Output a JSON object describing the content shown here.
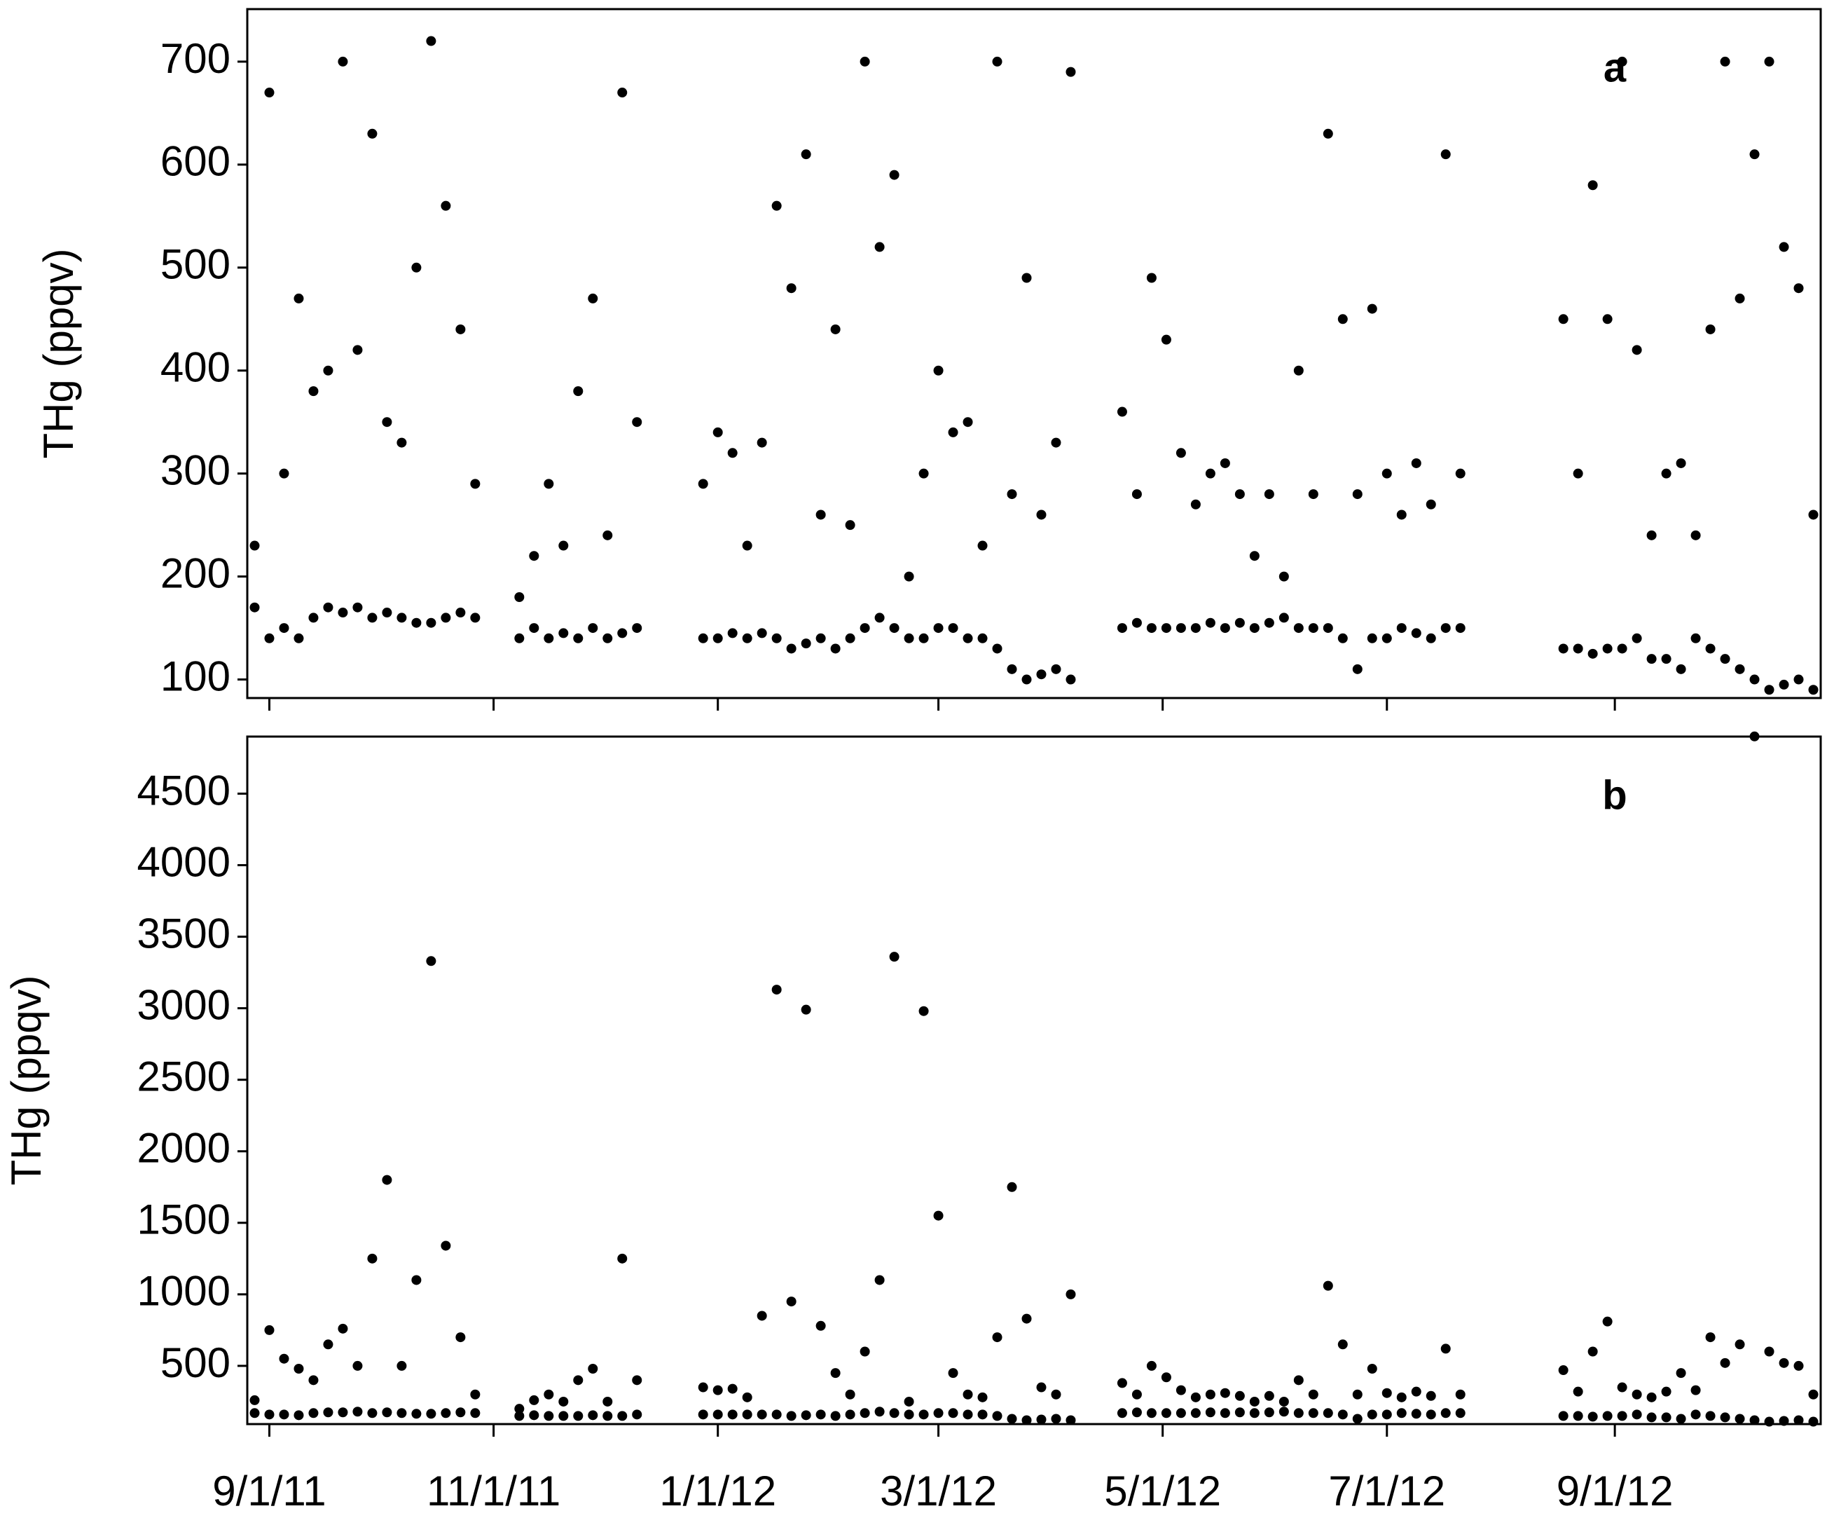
{
  "chart_data": [
    {
      "type": "scatter",
      "annotation": "a",
      "ylabel": "THg (ppqv)",
      "color": "#000000",
      "xlim": [
        "2011-08-26",
        "2012-10-27"
      ],
      "ylim": [
        82,
        751
      ],
      "yticks": [
        100,
        200,
        300,
        400,
        500,
        600,
        700
      ],
      "xticks": [
        "2011-09-01",
        "2011-11-01",
        "2012-01-01",
        "2012-03-01",
        "2012-05-01",
        "2012-07-01",
        "2012-09-01"
      ],
      "x": [
        "2011-08-28",
        "2011-08-28",
        "2011-09-01",
        "2011-09-01",
        "2011-09-05",
        "2011-09-05",
        "2011-09-09",
        "2011-09-09",
        "2011-09-13",
        "2011-09-13",
        "2011-09-17",
        "2011-09-17",
        "2011-09-21",
        "2011-09-21",
        "2011-09-25",
        "2011-09-25",
        "2011-09-29",
        "2011-09-29",
        "2011-10-03",
        "2011-10-03",
        "2011-10-07",
        "2011-10-07",
        "2011-10-11",
        "2011-10-11",
        "2011-10-15",
        "2011-10-15",
        "2011-10-19",
        "2011-10-19",
        "2011-10-23",
        "2011-10-23",
        "2011-10-27",
        "2011-10-27",
        "2011-11-08",
        "2011-11-08",
        "2011-11-12",
        "2011-11-12",
        "2011-11-16",
        "2011-11-16",
        "2011-11-20",
        "2011-11-20",
        "2011-11-24",
        "2011-11-24",
        "2011-11-28",
        "2011-11-28",
        "2011-12-02",
        "2011-12-02",
        "2011-12-06",
        "2011-12-06",
        "2011-12-10",
        "2011-12-10",
        "2011-12-28",
        "2011-12-28",
        "2012-01-01",
        "2012-01-01",
        "2012-01-05",
        "2012-01-05",
        "2012-01-09",
        "2012-01-09",
        "2012-01-13",
        "2012-01-13",
        "2012-01-17",
        "2012-01-17",
        "2012-01-21",
        "2012-01-21",
        "2012-01-25",
        "2012-01-25",
        "2012-01-29",
        "2012-01-29",
        "2012-02-02",
        "2012-02-02",
        "2012-02-06",
        "2012-02-06",
        "2012-02-10",
        "2012-02-10",
        "2012-02-14",
        "2012-02-14",
        "2012-02-18",
        "2012-02-18",
        "2012-02-22",
        "2012-02-22",
        "2012-02-26",
        "2012-02-26",
        "2012-03-01",
        "2012-03-01",
        "2012-03-05",
        "2012-03-05",
        "2012-03-09",
        "2012-03-09",
        "2012-03-13",
        "2012-03-13",
        "2012-03-17",
        "2012-03-17",
        "2012-03-21",
        "2012-03-21",
        "2012-03-25",
        "2012-03-25",
        "2012-03-29",
        "2012-03-29",
        "2012-04-02",
        "2012-04-02",
        "2012-04-06",
        "2012-04-06",
        "2012-04-20",
        "2012-04-20",
        "2012-04-24",
        "2012-04-24",
        "2012-04-28",
        "2012-04-28",
        "2012-05-02",
        "2012-05-02",
        "2012-05-06",
        "2012-05-06",
        "2012-05-10",
        "2012-05-10",
        "2012-05-14",
        "2012-05-14",
        "2012-05-18",
        "2012-05-18",
        "2012-05-22",
        "2012-05-22",
        "2012-05-26",
        "2012-05-26",
        "2012-05-30",
        "2012-05-30",
        "2012-06-03",
        "2012-06-03",
        "2012-06-07",
        "2012-06-07",
        "2012-06-11",
        "2012-06-11",
        "2012-06-15",
        "2012-06-15",
        "2012-06-19",
        "2012-06-19",
        "2012-06-23",
        "2012-06-23",
        "2012-06-27",
        "2012-06-27",
        "2012-07-01",
        "2012-07-01",
        "2012-07-05",
        "2012-07-05",
        "2012-07-09",
        "2012-07-09",
        "2012-07-13",
        "2012-07-13",
        "2012-07-17",
        "2012-07-17",
        "2012-07-21",
        "2012-07-21",
        "2012-08-18",
        "2012-08-18",
        "2012-08-22",
        "2012-08-22",
        "2012-08-26",
        "2012-08-26",
        "2012-08-30",
        "2012-08-30",
        "2012-09-03",
        "2012-09-03",
        "2012-09-07",
        "2012-09-07",
        "2012-09-11",
        "2012-09-11",
        "2012-09-15",
        "2012-09-15",
        "2012-09-19",
        "2012-09-19",
        "2012-09-23",
        "2012-09-23",
        "2012-09-27",
        "2012-09-27",
        "2012-10-01",
        "2012-10-01",
        "2012-10-05",
        "2012-10-05",
        "2012-10-09",
        "2012-10-09",
        "2012-10-13",
        "2012-10-13",
        "2012-10-17",
        "2012-10-17",
        "2012-10-21",
        "2012-10-21",
        "2012-10-25",
        "2012-10-25"
      ],
      "values": [
        170,
        230,
        140,
        670,
        150,
        300,
        140,
        470,
        160,
        380,
        170,
        400,
        165,
        700,
        170,
        420,
        160,
        630,
        165,
        350,
        160,
        330,
        155,
        500,
        155,
        720,
        160,
        560,
        165,
        440,
        160,
        290,
        140,
        180,
        150,
        220,
        140,
        290,
        145,
        230,
        140,
        380,
        150,
        470,
        140,
        240,
        145,
        670,
        150,
        350,
        140,
        290,
        140,
        340,
        145,
        320,
        140,
        230,
        145,
        330,
        140,
        560,
        130,
        480,
        135,
        610,
        140,
        260,
        130,
        440,
        140,
        250,
        150,
        700,
        160,
        520,
        150,
        590,
        140,
        200,
        140,
        300,
        150,
        400,
        150,
        340,
        140,
        350,
        140,
        230,
        130,
        700,
        110,
        280,
        100,
        490,
        105,
        260,
        110,
        330,
        100,
        690,
        150,
        360,
        155,
        280,
        150,
        490,
        150,
        430,
        150,
        320,
        150,
        270,
        155,
        300,
        150,
        310,
        155,
        280,
        150,
        220,
        155,
        280,
        160,
        200,
        150,
        400,
        150,
        280,
        150,
        630,
        140,
        450,
        110,
        280,
        140,
        460,
        140,
        300,
        150,
        260,
        145,
        310,
        140,
        270,
        150,
        610,
        150,
        300,
        130,
        450,
        130,
        300,
        125,
        580,
        130,
        450,
        130,
        700,
        140,
        420,
        120,
        240,
        120,
        300,
        110,
        310,
        140,
        240,
        130,
        440,
        120,
        700,
        110,
        470,
        100,
        610,
        90,
        700,
        95,
        520,
        100,
        480,
        90,
        260
      ]
    },
    {
      "type": "scatter",
      "annotation": "b",
      "ylabel": "THg (ppqv)",
      "color": "#000000",
      "xlim": [
        "2011-08-26",
        "2012-10-27"
      ],
      "ylim": [
        93,
        4899
      ],
      "yticks": [
        500,
        1000,
        1500,
        2000,
        2500,
        3000,
        3500,
        4000,
        4500
      ],
      "xticks": [
        {
          "value": "2011-09-01",
          "label": "9/1/11"
        },
        {
          "value": "2011-11-01",
          "label": "11/1/11"
        },
        {
          "value": "2012-01-01",
          "label": "1/1/12"
        },
        {
          "value": "2012-03-01",
          "label": "3/1/12"
        },
        {
          "value": "2012-05-01",
          "label": "5/1/12"
        },
        {
          "value": "2012-07-01",
          "label": "7/1/12"
        },
        {
          "value": "2012-09-01",
          "label": "9/1/12"
        }
      ],
      "x": [
        "2011-08-28",
        "2011-08-28",
        "2011-09-01",
        "2011-09-01",
        "2011-09-05",
        "2011-09-05",
        "2011-09-09",
        "2011-09-09",
        "2011-09-13",
        "2011-09-13",
        "2011-09-17",
        "2011-09-17",
        "2011-09-21",
        "2011-09-21",
        "2011-09-25",
        "2011-09-25",
        "2011-09-29",
        "2011-09-29",
        "2011-10-03",
        "2011-10-03",
        "2011-10-07",
        "2011-10-07",
        "2011-10-11",
        "2011-10-11",
        "2011-10-15",
        "2011-10-15",
        "2011-10-19",
        "2011-10-19",
        "2011-10-23",
        "2011-10-23",
        "2011-10-27",
        "2011-10-27",
        "2011-11-08",
        "2011-11-08",
        "2011-11-12",
        "2011-11-12",
        "2011-11-16",
        "2011-11-16",
        "2011-11-20",
        "2011-11-20",
        "2011-11-24",
        "2011-11-24",
        "2011-11-28",
        "2011-11-28",
        "2011-12-02",
        "2011-12-02",
        "2011-12-06",
        "2011-12-06",
        "2011-12-10",
        "2011-12-10",
        "2011-12-28",
        "2011-12-28",
        "2012-01-01",
        "2012-01-01",
        "2012-01-05",
        "2012-01-05",
        "2012-01-09",
        "2012-01-09",
        "2012-01-13",
        "2012-01-13",
        "2012-01-17",
        "2012-01-17",
        "2012-01-21",
        "2012-01-21",
        "2012-01-25",
        "2012-01-25",
        "2012-01-29",
        "2012-01-29",
        "2012-02-02",
        "2012-02-02",
        "2012-02-06",
        "2012-02-06",
        "2012-02-10",
        "2012-02-10",
        "2012-02-14",
        "2012-02-14",
        "2012-02-18",
        "2012-02-18",
        "2012-02-22",
        "2012-02-22",
        "2012-02-26",
        "2012-02-26",
        "2012-03-01",
        "2012-03-01",
        "2012-03-05",
        "2012-03-05",
        "2012-03-09",
        "2012-03-09",
        "2012-03-13",
        "2012-03-13",
        "2012-03-17",
        "2012-03-17",
        "2012-03-21",
        "2012-03-21",
        "2012-03-25",
        "2012-03-25",
        "2012-03-29",
        "2012-03-29",
        "2012-04-02",
        "2012-04-02",
        "2012-04-06",
        "2012-04-06",
        "2012-04-20",
        "2012-04-20",
        "2012-04-24",
        "2012-04-24",
        "2012-04-28",
        "2012-04-28",
        "2012-05-02",
        "2012-05-02",
        "2012-05-06",
        "2012-05-06",
        "2012-05-10",
        "2012-05-10",
        "2012-05-14",
        "2012-05-14",
        "2012-05-18",
        "2012-05-18",
        "2012-05-22",
        "2012-05-22",
        "2012-05-26",
        "2012-05-26",
        "2012-05-30",
        "2012-05-30",
        "2012-06-03",
        "2012-06-03",
        "2012-06-07",
        "2012-06-07",
        "2012-06-11",
        "2012-06-11",
        "2012-06-15",
        "2012-06-15",
        "2012-06-19",
        "2012-06-19",
        "2012-06-23",
        "2012-06-23",
        "2012-06-27",
        "2012-06-27",
        "2012-07-01",
        "2012-07-01",
        "2012-07-05",
        "2012-07-05",
        "2012-07-09",
        "2012-07-09",
        "2012-07-13",
        "2012-07-13",
        "2012-07-17",
        "2012-07-17",
        "2012-07-21",
        "2012-07-21",
        "2012-08-18",
        "2012-08-18",
        "2012-08-22",
        "2012-08-22",
        "2012-08-26",
        "2012-08-26",
        "2012-08-30",
        "2012-08-30",
        "2012-09-03",
        "2012-09-03",
        "2012-09-07",
        "2012-09-07",
        "2012-09-11",
        "2012-09-11",
        "2012-09-15",
        "2012-09-15",
        "2012-09-19",
        "2012-09-19",
        "2012-09-23",
        "2012-09-23",
        "2012-09-27",
        "2012-09-27",
        "2012-10-01",
        "2012-10-01",
        "2012-10-05",
        "2012-10-05",
        "2012-10-09",
        "2012-10-09",
        "2012-10-13",
        "2012-10-13",
        "2012-10-17",
        "2012-10-17",
        "2012-10-21",
        "2012-10-21",
        "2012-10-25",
        "2012-10-25"
      ],
      "values": [
        170,
        260,
        160,
        750,
        160,
        550,
        155,
        480,
        170,
        400,
        175,
        650,
        175,
        760,
        180,
        500,
        170,
        1250,
        175,
        1800,
        170,
        500,
        165,
        1100,
        165,
        3330,
        170,
        1340,
        175,
        700,
        170,
        300,
        150,
        200,
        155,
        260,
        150,
        300,
        150,
        250,
        150,
        400,
        155,
        480,
        150,
        250,
        150,
        1250,
        160,
        400,
        160,
        350,
        160,
        330,
        160,
        340,
        160,
        280,
        160,
        850,
        160,
        3130,
        150,
        950,
        155,
        2990,
        160,
        780,
        150,
        450,
        160,
        300,
        170,
        600,
        180,
        1100,
        170,
        3360,
        160,
        250,
        160,
        2980,
        170,
        1550,
        170,
        450,
        160,
        300,
        160,
        280,
        150,
        700,
        130,
        1750,
        120,
        830,
        125,
        350,
        130,
        300,
        120,
        1000,
        170,
        380,
        175,
        300,
        170,
        500,
        170,
        420,
        170,
        330,
        170,
        280,
        175,
        300,
        170,
        310,
        175,
        290,
        170,
        250,
        175,
        290,
        180,
        250,
        170,
        400,
        170,
        300,
        170,
        1060,
        160,
        650,
        130,
        300,
        160,
        480,
        160,
        310,
        170,
        280,
        165,
        320,
        160,
        290,
        170,
        620,
        170,
        300,
        150,
        470,
        150,
        320,
        145,
        600,
        150,
        810,
        150,
        350,
        160,
        300,
        140,
        280,
        140,
        320,
        130,
        450,
        160,
        330,
        150,
        700,
        140,
        520,
        130,
        650,
        120,
        4900,
        110,
        600,
        115,
        520,
        120,
        500,
        110,
        300
      ]
    }
  ]
}
